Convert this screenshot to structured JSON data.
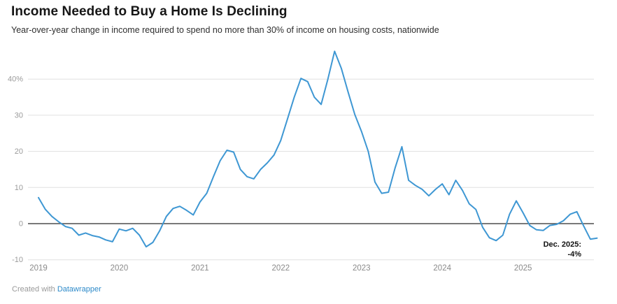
{
  "chart_data": {
    "type": "line",
    "title": "Income Needed to Buy a Home Is Declining",
    "subtitle": "Year-over-year change in income required to spend no more than 30% of income on housing costs, nationwide",
    "unit": "%",
    "grid": "horizontal",
    "legend": "none",
    "line_color": "#3e97d3",
    "ylim": [
      -10,
      48
    ],
    "y_ticks": [
      {
        "label": "40%",
        "value": 40
      },
      {
        "label": "30",
        "value": 30
      },
      {
        "label": "20",
        "value": 20
      },
      {
        "label": "10",
        "value": 10
      },
      {
        "label": "0",
        "value": 0
      },
      {
        "label": "-10",
        "value": -10
      }
    ],
    "x_tick_labels": [
      "2019",
      "2020",
      "2021",
      "2022",
      "2023",
      "2024",
      "2025"
    ],
    "x": [
      "2019-01",
      "2019-02",
      "2019-03",
      "2019-04",
      "2019-05",
      "2019-06",
      "2019-07",
      "2019-08",
      "2019-09",
      "2019-10",
      "2019-11",
      "2019-12",
      "2020-01",
      "2020-02",
      "2020-03",
      "2020-04",
      "2020-05",
      "2020-06",
      "2020-07",
      "2020-08",
      "2020-09",
      "2020-10",
      "2020-11",
      "2020-12",
      "2021-01",
      "2021-02",
      "2021-03",
      "2021-04",
      "2021-05",
      "2021-06",
      "2021-07",
      "2021-08",
      "2021-09",
      "2021-10",
      "2021-11",
      "2021-12",
      "2022-01",
      "2022-02",
      "2022-03",
      "2022-04",
      "2022-05",
      "2022-06",
      "2022-07",
      "2022-08",
      "2022-09",
      "2022-10",
      "2022-11",
      "2022-12",
      "2023-01",
      "2023-02",
      "2023-03",
      "2023-04",
      "2023-05",
      "2023-06",
      "2023-07",
      "2023-08",
      "2023-09",
      "2023-10",
      "2023-11",
      "2023-12",
      "2024-01",
      "2024-02",
      "2024-03",
      "2024-04",
      "2024-05",
      "2024-06",
      "2024-07",
      "2024-08",
      "2024-09",
      "2024-10",
      "2024-11",
      "2024-12",
      "2025-01",
      "2025-02",
      "2025-03",
      "2025-04",
      "2025-05",
      "2025-06",
      "2025-07",
      "2025-08",
      "2025-09",
      "2025-10",
      "2025-11",
      "2025-12"
    ],
    "values": [
      7.2,
      4.0,
      2.0,
      0.5,
      -0.8,
      -1.3,
      -3.2,
      -2.6,
      -3.3,
      -3.7,
      -4.5,
      -5.0,
      -1.5,
      -2.0,
      -1.3,
      -3.2,
      -6.4,
      -5.2,
      -2.0,
      2.0,
      4.2,
      4.8,
      3.7,
      2.4,
      6.0,
      8.4,
      13.0,
      17.4,
      20.3,
      19.8,
      15.0,
      13.0,
      12.4,
      15.0,
      16.8,
      19.0,
      23.0,
      29.0,
      35.0,
      40.2,
      39.3,
      35.0,
      33.0,
      40.0,
      47.7,
      43.0,
      36.5,
      30.2,
      25.5,
      20.0,
      11.5,
      8.4,
      8.7,
      15.5,
      21.3,
      12.0,
      10.6,
      9.5,
      7.7,
      9.5,
      11.0,
      8.0,
      12.0,
      9.2,
      5.5,
      3.9,
      -1.0,
      -3.9,
      -4.7,
      -3.2,
      2.6,
      6.3,
      3.0,
      -0.5,
      -1.7,
      -1.9,
      -0.5,
      -0.2,
      0.8,
      2.6,
      3.3,
      -0.6,
      -4.3,
      -4.0
    ],
    "annotation": {
      "text_line1": "Dec. 2025:",
      "text_line2": "-4%",
      "x": "2025-12",
      "value": -4
    }
  },
  "footer": {
    "credit_prefix": "Created with ",
    "credit_link_label": "Datawrapper"
  }
}
